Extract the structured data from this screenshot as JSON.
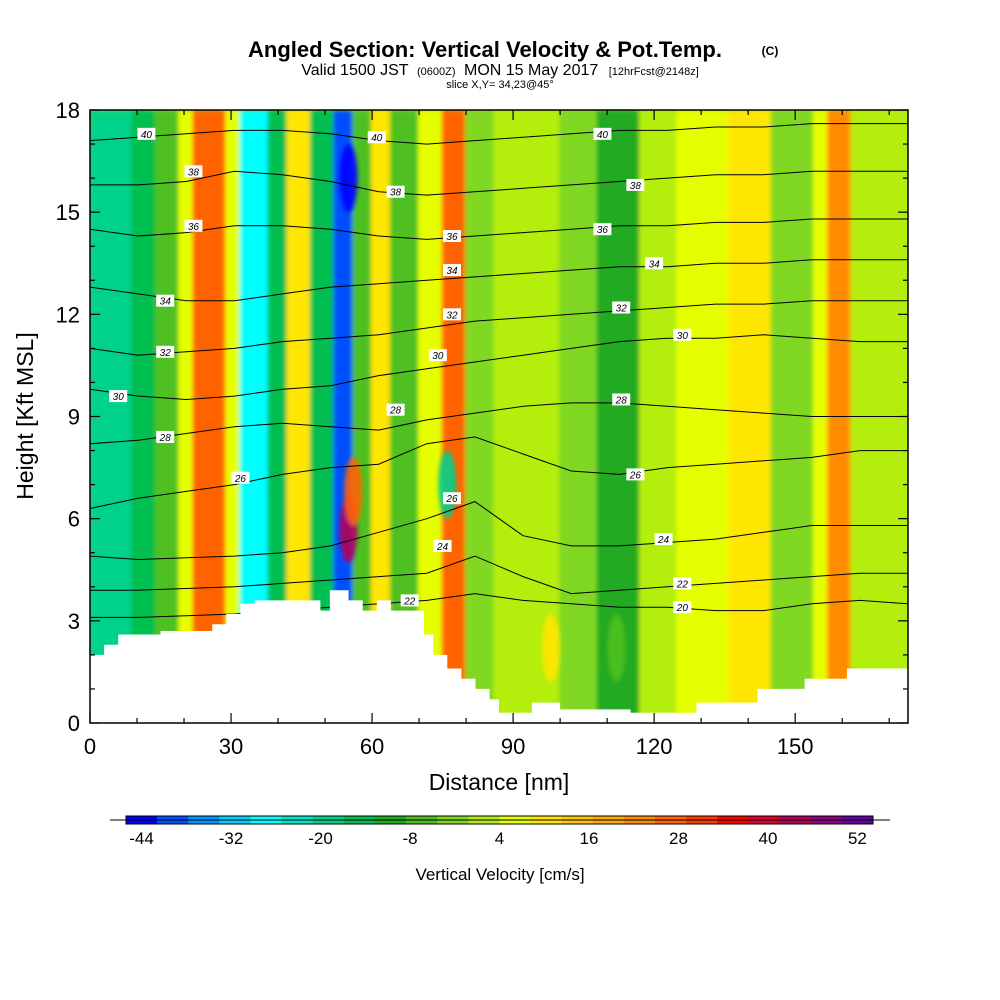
{
  "chart_data": {
    "type": "heatmap",
    "title": "Angled Section: Vertical Velocity & Pot.Temp.",
    "title_units": "(C)",
    "subtitle": {
      "valid": "Valid 1500 JST",
      "zulu": "(0600Z)",
      "date": "MON 15 May 2017",
      "forecast": "[12hrFcst@2148z]"
    },
    "slice_text": "slice X,Y= 34,23@45°",
    "xlabel": "Distance [nm]",
    "ylabel": "Height [Kft MSL]",
    "xlim": [
      0,
      174
    ],
    "ylim": [
      0,
      18
    ],
    "x_ticks": [
      0,
      30,
      60,
      90,
      120,
      150
    ],
    "y_ticks": [
      0,
      3,
      6,
      9,
      12,
      15,
      18
    ],
    "colorbar": {
      "label": "Vertical Velocity [cm/s]",
      "tick_labels": [
        "-44",
        "-32",
        "-20",
        "-8",
        "4",
        "16",
        "28",
        "40",
        "52"
      ],
      "tick_values": [
        -44,
        -32,
        -20,
        -8,
        4,
        16,
        28,
        40,
        52
      ],
      "colors": [
        "#0000ff",
        "#0050ff",
        "#0096ff",
        "#00d2ff",
        "#00ffff",
        "#00e6c8",
        "#00d28c",
        "#00be50",
        "#20aa20",
        "#50c020",
        "#80d820",
        "#b4ee10",
        "#e6ff00",
        "#ffe600",
        "#ffc800",
        "#ffaa00",
        "#ff8c00",
        "#ff6400",
        "#ff3c00",
        "#ff0000",
        "#dc0032",
        "#b4005a",
        "#8c0082",
        "#6400a0"
      ]
    },
    "vertical_velocity_bands": [
      {
        "x_start": 0,
        "x_end": 9,
        "w": -20
      },
      {
        "x_start": 9,
        "x_end": 14,
        "w": -14
      },
      {
        "x_start": 14,
        "x_end": 19,
        "w": -8
      },
      {
        "x_start": 19,
        "x_end": 22,
        "w": 4
      },
      {
        "x_start": 22,
        "x_end": 29,
        "w": 24
      },
      {
        "x_start": 29,
        "x_end": 32,
        "w": 4
      },
      {
        "x_start": 32,
        "x_end": 38,
        "w": -26
      },
      {
        "x_start": 38,
        "x_end": 42,
        "w": -14
      },
      {
        "x_start": 42,
        "x_end": 47,
        "w": 8
      },
      {
        "x_start": 47,
        "x_end": 52,
        "w": -14
      },
      {
        "x_start": 52,
        "x_end": 56,
        "w": -40
      },
      {
        "x_start": 56,
        "x_end": 60,
        "w": -8
      },
      {
        "x_start": 60,
        "x_end": 64,
        "w": 8
      },
      {
        "x_start": 64,
        "x_end": 70,
        "w": -8
      },
      {
        "x_start": 70,
        "x_end": 75,
        "w": 4
      },
      {
        "x_start": 75,
        "x_end": 80,
        "w": 26
      },
      {
        "x_start": 80,
        "x_end": 86,
        "w": -4
      },
      {
        "x_start": 86,
        "x_end": 100,
        "w": 0
      },
      {
        "x_start": 100,
        "x_end": 108,
        "w": -2
      },
      {
        "x_start": 108,
        "x_end": 117,
        "w": -12
      },
      {
        "x_start": 117,
        "x_end": 125,
        "w": 0
      },
      {
        "x_start": 125,
        "x_end": 136,
        "w": 4
      },
      {
        "x_start": 136,
        "x_end": 145,
        "w": 8
      },
      {
        "x_start": 145,
        "x_end": 154,
        "w": -4
      },
      {
        "x_start": 154,
        "x_end": 157,
        "w": 4
      },
      {
        "x_start": 157,
        "x_end": 162,
        "w": 22
      },
      {
        "x_start": 162,
        "x_end": 174,
        "w": 2
      }
    ],
    "vertical_velocity_features": [
      {
        "x": 55,
        "z": 5.7,
        "w": 40
      },
      {
        "x": 56,
        "z": 6.8,
        "w": 26
      },
      {
        "x": 55,
        "z": 16,
        "w": -44
      },
      {
        "x": 76,
        "z": 7,
        "w": -20
      },
      {
        "x": 112,
        "z": 2.2,
        "w": -8
      },
      {
        "x": 98,
        "z": 2.2,
        "w": 8
      }
    ],
    "terrain": [
      [
        0,
        2
      ],
      [
        3,
        2
      ],
      [
        3,
        2.3
      ],
      [
        6,
        2.3
      ],
      [
        6,
        2.6
      ],
      [
        15,
        2.6
      ],
      [
        15,
        2.7
      ],
      [
        26,
        2.7
      ],
      [
        26,
        2.9
      ],
      [
        29,
        2.9
      ],
      [
        29,
        3.2
      ],
      [
        32,
        3.2
      ],
      [
        32,
        3.5
      ],
      [
        35,
        3.5
      ],
      [
        35,
        3.6
      ],
      [
        49,
        3.6
      ],
      [
        49,
        3.3
      ],
      [
        51,
        3.3
      ],
      [
        51,
        3.9
      ],
      [
        55,
        3.9
      ],
      [
        55,
        3.6
      ],
      [
        58,
        3.6
      ],
      [
        58,
        3.3
      ],
      [
        61,
        3.3
      ],
      [
        61,
        3.6
      ],
      [
        64,
        3.6
      ],
      [
        64,
        3.3
      ],
      [
        71,
        3.3
      ],
      [
        71,
        2.6
      ],
      [
        73,
        2.6
      ],
      [
        73,
        2
      ],
      [
        76,
        2
      ],
      [
        76,
        1.6
      ],
      [
        79,
        1.6
      ],
      [
        79,
        1.3
      ],
      [
        82,
        1.3
      ],
      [
        82,
        1
      ],
      [
        85,
        1
      ],
      [
        85,
        0.7
      ],
      [
        87,
        0.7
      ],
      [
        87,
        0.3
      ],
      [
        94,
        0.3
      ],
      [
        94,
        0.6
      ],
      [
        100,
        0.6
      ],
      [
        100,
        0.4
      ],
      [
        115,
        0.4
      ],
      [
        115,
        0.3
      ],
      [
        129,
        0.3
      ],
      [
        129,
        0.6
      ],
      [
        142,
        0.6
      ],
      [
        142,
        1
      ],
      [
        152,
        1
      ],
      [
        152,
        1.3
      ],
      [
        161,
        1.3
      ],
      [
        161,
        1.6
      ],
      [
        174,
        1.6
      ]
    ],
    "isentropes": [
      {
        "theta": 20,
        "z": [
          3.1,
          3.1,
          3.15,
          3.2,
          3.3,
          3.4,
          3.5,
          3.6,
          3.8,
          3.6,
          3.5,
          3.4,
          3.4,
          3.3,
          3.3,
          3.5,
          3.6,
          3.5
        ]
      },
      {
        "theta": 22,
        "z": [
          3.9,
          3.9,
          3.95,
          4.0,
          4.1,
          4.2,
          4.3,
          4.4,
          4.9,
          4.3,
          3.8,
          3.9,
          4.0,
          4.1,
          4.2,
          4.3,
          4.4,
          4.4
        ]
      },
      {
        "theta": 24,
        "z": [
          4.9,
          4.8,
          4.85,
          4.9,
          5.0,
          5.2,
          5.6,
          6.0,
          6.5,
          5.5,
          5.2,
          5.2,
          5.3,
          5.4,
          5.6,
          5.8,
          5.8,
          5.8
        ]
      },
      {
        "theta": 26,
        "z": [
          6.3,
          6.6,
          6.8,
          7.0,
          7.3,
          7.5,
          7.6,
          8.2,
          8.4,
          7.9,
          7.4,
          7.3,
          7.5,
          7.6,
          7.7,
          7.8,
          8.0,
          8.0
        ]
      },
      {
        "theta": 28,
        "z": [
          8.2,
          8.3,
          8.5,
          8.7,
          8.8,
          8.7,
          8.6,
          8.9,
          9.1,
          9.3,
          9.4,
          9.4,
          9.3,
          9.2,
          9.1,
          9.0,
          9.0,
          9.0
        ]
      },
      {
        "theta": 30,
        "z": [
          9.8,
          9.6,
          9.5,
          9.6,
          9.8,
          9.9,
          10.2,
          10.4,
          10.6,
          10.8,
          11.0,
          11.2,
          11.3,
          11.3,
          11.4,
          11.3,
          11.2,
          11.2
        ]
      },
      {
        "theta": 32,
        "z": [
          11.0,
          10.8,
          10.9,
          11.0,
          11.2,
          11.3,
          11.4,
          11.6,
          11.8,
          11.9,
          12.0,
          12.1,
          12.2,
          12.3,
          12.3,
          12.4,
          12.4,
          12.4
        ]
      },
      {
        "theta": 34,
        "z": [
          12.8,
          12.6,
          12.4,
          12.4,
          12.6,
          12.8,
          12.9,
          13.0,
          13.1,
          13.2,
          13.3,
          13.4,
          13.4,
          13.5,
          13.5,
          13.6,
          13.6,
          13.6
        ]
      },
      {
        "theta": 36,
        "z": [
          14.5,
          14.3,
          14.4,
          14.6,
          14.6,
          14.5,
          14.3,
          14.2,
          14.3,
          14.4,
          14.5,
          14.6,
          14.6,
          14.7,
          14.7,
          14.8,
          14.8,
          14.8
        ]
      },
      {
        "theta": 38,
        "z": [
          15.8,
          15.8,
          15.9,
          16.2,
          16.1,
          15.9,
          15.6,
          15.5,
          15.6,
          15.7,
          15.8,
          15.9,
          16.0,
          16.1,
          16.1,
          16.2,
          16.2,
          16.2
        ]
      },
      {
        "theta": 40,
        "z": [
          17.1,
          17.2,
          17.3,
          17.4,
          17.4,
          17.3,
          17.1,
          17.0,
          17.1,
          17.2,
          17.3,
          17.4,
          17.4,
          17.5,
          17.5,
          17.6,
          17.6,
          17.6
        ]
      }
    ],
    "isentrope_labels": [
      {
        "text": "40",
        "x": 12,
        "z": 17.3
      },
      {
        "text": "38",
        "x": 22,
        "z": 16.2
      },
      {
        "text": "36",
        "x": 22,
        "z": 14.6
      },
      {
        "text": "34",
        "x": 16,
        "z": 12.4
      },
      {
        "text": "32",
        "x": 16,
        "z": 10.9
      },
      {
        "text": "30",
        "x": 6,
        "z": 9.6
      },
      {
        "text": "28",
        "x": 16,
        "z": 8.4
      },
      {
        "text": "26",
        "x": 32,
        "z": 7.2
      },
      {
        "text": "40",
        "x": 61,
        "z": 17.2
      },
      {
        "text": "38",
        "x": 65,
        "z": 15.6
      },
      {
        "text": "36",
        "x": 77,
        "z": 14.3
      },
      {
        "text": "34",
        "x": 77,
        "z": 13.3
      },
      {
        "text": "32",
        "x": 77,
        "z": 12.0
      },
      {
        "text": "30",
        "x": 74,
        "z": 10.8
      },
      {
        "text": "28",
        "x": 65,
        "z": 9.2
      },
      {
        "text": "26",
        "x": 77,
        "z": 6.6
      },
      {
        "text": "24",
        "x": 75,
        "z": 5.2
      },
      {
        "text": "22",
        "x": 68,
        "z": 3.6
      },
      {
        "text": "40",
        "x": 109,
        "z": 17.3
      },
      {
        "text": "38",
        "x": 116,
        "z": 15.8
      },
      {
        "text": "36",
        "x": 109,
        "z": 14.5
      },
      {
        "text": "34",
        "x": 120,
        "z": 13.5
      },
      {
        "text": "32",
        "x": 113,
        "z": 12.2
      },
      {
        "text": "30",
        "x": 126,
        "z": 11.4
      },
      {
        "text": "28",
        "x": 113,
        "z": 9.5
      },
      {
        "text": "26",
        "x": 116,
        "z": 7.3
      },
      {
        "text": "24",
        "x": 122,
        "z": 5.4
      },
      {
        "text": "22",
        "x": 126,
        "z": 4.1
      },
      {
        "text": "20",
        "x": 126,
        "z": 3.4
      }
    ],
    "grid": false
  }
}
